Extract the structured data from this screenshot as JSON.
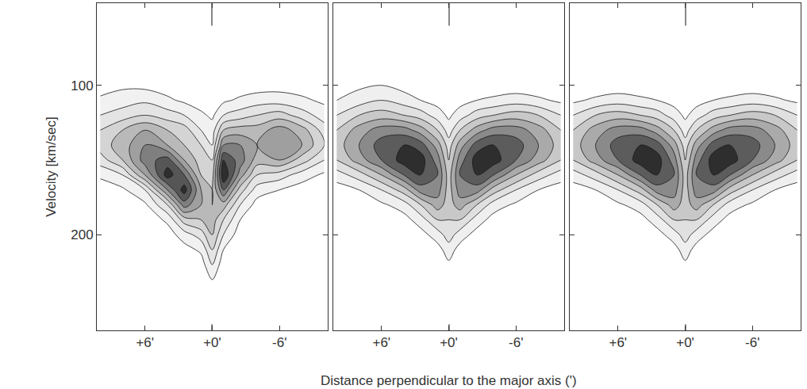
{
  "chart_data": [
    {
      "type": "contour",
      "ylabel": "Velocity [km/sec]",
      "tick_labels": true,
      "x": [
        10,
        8,
        6,
        4,
        2.5,
        1,
        0,
        -1,
        -2.5,
        -4,
        -6,
        -8,
        -10
      ],
      "y": [
        60,
        80,
        100,
        110,
        120,
        130,
        140,
        150,
        160,
        170,
        180,
        190,
        200,
        210,
        220,
        230,
        240,
        260
      ],
      "z_by_x": [
        [
          0,
          0.2,
          0.5,
          1.2,
          2,
          3,
          3.5,
          2.5,
          1.2,
          0.4,
          0.2,
          0,
          0,
          0,
          0,
          0,
          0,
          0
        ],
        [
          0,
          0.3,
          0.8,
          1.5,
          2.5,
          4,
          4.5,
          4,
          2,
          0.8,
          0.3,
          0.1,
          0,
          0,
          0,
          0,
          0,
          0
        ],
        [
          0,
          0.2,
          0.7,
          1.8,
          3,
          5,
          6,
          6.5,
          5,
          2,
          0.8,
          0.3,
          0,
          0,
          0,
          0,
          0,
          0
        ],
        [
          0,
          0.1,
          0.5,
          1.2,
          2.5,
          4,
          5,
          7.5,
          8.5,
          6,
          3,
          1.2,
          0.5,
          0.2,
          0,
          0,
          0,
          0
        ],
        [
          0,
          0,
          0.3,
          0.8,
          2,
          3.5,
          4,
          5,
          7,
          8.5,
          6.5,
          3.5,
          1.5,
          0.6,
          0.2,
          0,
          0,
          0
        ],
        [
          0,
          0,
          0.2,
          0.5,
          1.2,
          2,
          3,
          3.5,
          4,
          5,
          5,
          4,
          2.5,
          1.2,
          0.5,
          0.2,
          0,
          0
        ],
        [
          0,
          0,
          0.1,
          0.3,
          0.8,
          1.5,
          2,
          3,
          3.5,
          4,
          4,
          4.5,
          4,
          3,
          2,
          1,
          0.4,
          0
        ],
        [
          0,
          0,
          0.3,
          0.8,
          2,
          4,
          6,
          8,
          9,
          7,
          4.5,
          3,
          2,
          1,
          0.4,
          0.1,
          0,
          0
        ],
        [
          0,
          0,
          0.4,
          1.2,
          2.5,
          4.5,
          6,
          6.5,
          5.5,
          3.5,
          2,
          1,
          0.4,
          0.1,
          0,
          0,
          0,
          0
        ],
        [
          0,
          0,
          0.5,
          1.5,
          3,
          4.5,
          5,
          4.5,
          3,
          1.5,
          0.6,
          0.2,
          0,
          0,
          0,
          0,
          0,
          0
        ],
        [
          0,
          0.2,
          0.6,
          1.5,
          3.5,
          5.5,
          6,
          5,
          2.5,
          1,
          0.3,
          0,
          0,
          0,
          0,
          0,
          0,
          0
        ],
        [
          0,
          0.2,
          0.5,
          1.2,
          2.5,
          4.5,
          5,
          3.5,
          1.5,
          0.5,
          0.1,
          0,
          0,
          0,
          0,
          0,
          0,
          0
        ],
        [
          0,
          0,
          0.3,
          0.8,
          1.5,
          2.5,
          3,
          2,
          0.8,
          0.2,
          0,
          0,
          0,
          0,
          0,
          0,
          0,
          0
        ]
      ],
      "xlim": [
        10.3,
        -10.3
      ],
      "xticks": [
        {
          "value": 6,
          "label": "+6'"
        },
        {
          "value": 0,
          "label": "+0'"
        },
        {
          "value": -6,
          "label": "-6'"
        }
      ],
      "ylim": [
        264,
        45
      ],
      "yticks": [
        100,
        200
      ]
    },
    {
      "type": "contour",
      "xlabel": "Distance perpendicular to the major axis (')",
      "tick_labels": "x",
      "x": [
        10,
        8,
        6,
        4,
        2.5,
        1,
        0,
        -1,
        -2.5,
        -4,
        -6,
        -8,
        -10
      ],
      "y": [
        60,
        80,
        100,
        110,
        120,
        130,
        140,
        150,
        160,
        170,
        180,
        190,
        200,
        210,
        220,
        230,
        240,
        260
      ],
      "z_by_x": [
        [
          0,
          0,
          0.4,
          1,
          2,
          3,
          3.5,
          3,
          1.5,
          0.5,
          0.2,
          0,
          0,
          0,
          0,
          0,
          0,
          0
        ],
        [
          0,
          0.1,
          0.8,
          1.5,
          3,
          4.5,
          5,
          4.5,
          2.5,
          1,
          0.4,
          0.1,
          0,
          0,
          0,
          0,
          0,
          0
        ],
        [
          0,
          0.2,
          1,
          2,
          3.5,
          5.5,
          6.5,
          6,
          4,
          2,
          0.8,
          0.3,
          0.1,
          0,
          0,
          0,
          0,
          0
        ],
        [
          0,
          0.1,
          0.6,
          1.5,
          3,
          5.5,
          7,
          7.5,
          6,
          3.5,
          1.5,
          0.6,
          0.2,
          0,
          0,
          0,
          0,
          0
        ],
        [
          0,
          0,
          0.4,
          1,
          2.5,
          4.5,
          6.5,
          7.5,
          7,
          5.5,
          3,
          1.5,
          0.6,
          0.2,
          0,
          0,
          0,
          0
        ],
        [
          0,
          0,
          0.2,
          0.6,
          1.5,
          3,
          4.5,
          5.5,
          6,
          5.5,
          4.5,
          3,
          1.5,
          0.6,
          0.2,
          0,
          0,
          0
        ],
        [
          0,
          0,
          0.1,
          0.3,
          0.8,
          1.5,
          2.5,
          3,
          3.5,
          3.5,
          3.5,
          3,
          2.5,
          1.5,
          0.8,
          0.3,
          0.1,
          0
        ],
        [
          0,
          0,
          0.2,
          0.6,
          1.5,
          3,
          4.5,
          5.5,
          6,
          5.5,
          4.5,
          3,
          1.5,
          0.6,
          0.2,
          0,
          0,
          0
        ],
        [
          0,
          0,
          0.3,
          1,
          2.5,
          4.5,
          6.5,
          7.5,
          7,
          5.5,
          3,
          1.5,
          0.6,
          0.2,
          0,
          0,
          0,
          0
        ],
        [
          0,
          0,
          0.4,
          1.2,
          3,
          5.5,
          7,
          7.5,
          6,
          3.5,
          1.5,
          0.6,
          0.2,
          0,
          0,
          0,
          0,
          0
        ],
        [
          0,
          0,
          0.4,
          1.5,
          3.5,
          5.5,
          6.5,
          6,
          4,
          2,
          0.8,
          0.3,
          0.1,
          0,
          0,
          0,
          0,
          0
        ],
        [
          0,
          0,
          0.3,
          1.2,
          3,
          4.5,
          5,
          4.5,
          2.5,
          1,
          0.4,
          0.1,
          0,
          0,
          0,
          0,
          0,
          0
        ],
        [
          0,
          0,
          0.2,
          0.8,
          2,
          3,
          3.5,
          3,
          1.5,
          0.5,
          0.2,
          0,
          0,
          0,
          0,
          0,
          0,
          0
        ]
      ],
      "xlim": [
        10.3,
        -10.3
      ],
      "xticks": [
        {
          "value": 6,
          "label": "+6'"
        },
        {
          "value": 0,
          "label": "+0'"
        },
        {
          "value": -6,
          "label": "-6'"
        }
      ],
      "ylim": [
        264,
        45
      ],
      "yticks": [
        100,
        200
      ]
    },
    {
      "type": "contour",
      "tick_labels": "x",
      "x": [
        10,
        8,
        6,
        4,
        2.5,
        1,
        0,
        -1,
        -2.5,
        -4,
        -6,
        -8,
        -10
      ],
      "y": [
        60,
        80,
        100,
        110,
        120,
        130,
        140,
        150,
        160,
        170,
        180,
        190,
        200,
        210,
        220,
        230,
        240,
        260
      ],
      "z_by_x": [
        [
          0,
          0,
          0.2,
          0.8,
          2,
          3,
          3.5,
          3,
          1.5,
          0.5,
          0.2,
          0,
          0,
          0,
          0,
          0,
          0,
          0
        ],
        [
          0,
          0,
          0.3,
          1.2,
          3,
          4.5,
          5,
          4.5,
          2.5,
          1,
          0.4,
          0.1,
          0,
          0,
          0,
          0,
          0,
          0
        ],
        [
          0,
          0,
          0.4,
          1.5,
          3.5,
          5.5,
          6.5,
          6,
          4,
          2,
          0.8,
          0.3,
          0.1,
          0,
          0,
          0,
          0,
          0
        ],
        [
          0,
          0,
          0.4,
          1.2,
          3,
          5.5,
          7,
          7.5,
          6,
          3.5,
          1.5,
          0.6,
          0.2,
          0,
          0,
          0,
          0,
          0
        ],
        [
          0,
          0,
          0.3,
          1,
          2.5,
          4.5,
          6.5,
          7.5,
          7,
          5.5,
          3,
          1.5,
          0.6,
          0.2,
          0,
          0,
          0,
          0
        ],
        [
          0,
          0,
          0.2,
          0.6,
          1.5,
          3,
          4.5,
          5.5,
          6,
          5.5,
          4.5,
          3,
          1.5,
          0.6,
          0.2,
          0,
          0,
          0
        ],
        [
          0,
          0,
          0.1,
          0.3,
          0.8,
          1.5,
          2.5,
          3,
          3.5,
          3.5,
          3.5,
          3,
          2.5,
          1.5,
          0.8,
          0.3,
          0.1,
          0
        ],
        [
          0,
          0,
          0.2,
          0.6,
          1.5,
          3,
          4.5,
          5.5,
          6,
          5.5,
          4.5,
          3,
          1.5,
          0.6,
          0.2,
          0,
          0,
          0
        ],
        [
          0,
          0,
          0.3,
          1,
          2.5,
          4.5,
          6.5,
          7.5,
          7,
          5.5,
          3,
          1.5,
          0.6,
          0.2,
          0,
          0,
          0,
          0
        ],
        [
          0,
          0,
          0.4,
          1.2,
          3,
          5.5,
          7,
          7.5,
          6,
          3.5,
          1.5,
          0.6,
          0.2,
          0,
          0,
          0,
          0,
          0
        ],
        [
          0,
          0,
          0.4,
          1.5,
          3.5,
          5.5,
          6.5,
          6,
          4,
          2,
          0.8,
          0.3,
          0.1,
          0,
          0,
          0,
          0,
          0
        ],
        [
          0,
          0,
          0.3,
          1.2,
          3,
          4.5,
          5,
          4.5,
          2.5,
          1,
          0.4,
          0.1,
          0,
          0,
          0,
          0,
          0,
          0
        ],
        [
          0,
          0,
          0.2,
          0.8,
          2,
          3,
          3.5,
          3,
          1.5,
          0.5,
          0.2,
          0,
          0,
          0,
          0,
          0,
          0,
          0
        ]
      ],
      "xlim": [
        10.3,
        -10.3
      ],
      "xticks": [
        {
          "value": 6,
          "label": "+6'"
        },
        {
          "value": 0,
          "label": "+0'"
        },
        {
          "value": -6,
          "label": "-6'"
        }
      ],
      "ylim": [
        264,
        45
      ],
      "yticks": [
        100,
        200
      ]
    }
  ]
}
